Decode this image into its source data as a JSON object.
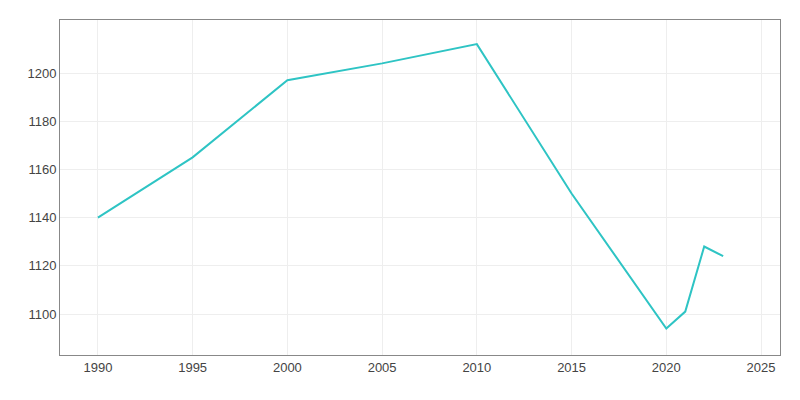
{
  "chart_data": {
    "type": "line",
    "x": [
      1990,
      1995,
      2000,
      2005,
      2010,
      2015,
      2020,
      2021,
      2022,
      2023
    ],
    "values": [
      1140,
      1165,
      1197,
      1204,
      1212,
      1150,
      1094,
      1101,
      1128,
      1124
    ],
    "color": "#2EC4C4",
    "xlim": [
      1988,
      2026
    ],
    "ylim": [
      1083,
      1222
    ],
    "xticks": [
      1990,
      1995,
      2000,
      2005,
      2010,
      2015,
      2020,
      2025
    ],
    "yticks": [
      1100,
      1120,
      1140,
      1160,
      1180,
      1200
    ],
    "grid": true
  }
}
